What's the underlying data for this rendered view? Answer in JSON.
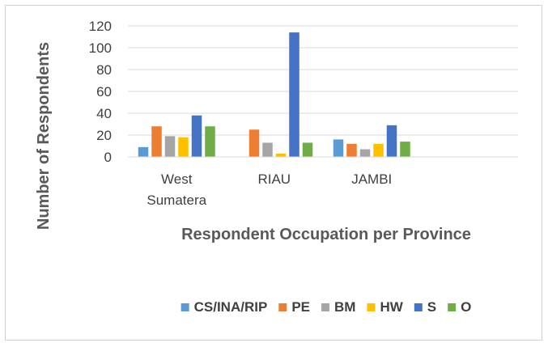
{
  "chart_data": {
    "type": "bar",
    "categories": [
      "West Sumatera",
      "RIAU",
      "JAMBI",
      ""
    ],
    "category_lines": [
      [
        "West",
        "Sumatera"
      ],
      [
        "RIAU"
      ],
      [
        "JAMBI"
      ],
      []
    ],
    "series": [
      {
        "name": "CS/INA/RIP",
        "color": "#5B9BD5",
        "values": [
          9,
          0,
          16,
          0
        ]
      },
      {
        "name": "PE",
        "color": "#ED7D31",
        "values": [
          28,
          25,
          12,
          0
        ]
      },
      {
        "name": "BM",
        "color": "#A5A5A5",
        "values": [
          19,
          13,
          7,
          0
        ]
      },
      {
        "name": "HW",
        "color": "#FFC000",
        "values": [
          18,
          3,
          12,
          0
        ]
      },
      {
        "name": "S",
        "color": "#4472C4",
        "values": [
          38,
          114,
          29,
          0
        ]
      },
      {
        "name": "O",
        "color": "#70AD47",
        "values": [
          28,
          13,
          14,
          0
        ]
      }
    ],
    "xlabel": "Respondent Occupation per Province",
    "ylabel": "Number of Respondents",
    "ylim": [
      0,
      120
    ],
    "yticks": [
      0,
      20,
      40,
      60,
      80,
      100,
      120
    ],
    "grid": true,
    "legend": "bottom"
  }
}
